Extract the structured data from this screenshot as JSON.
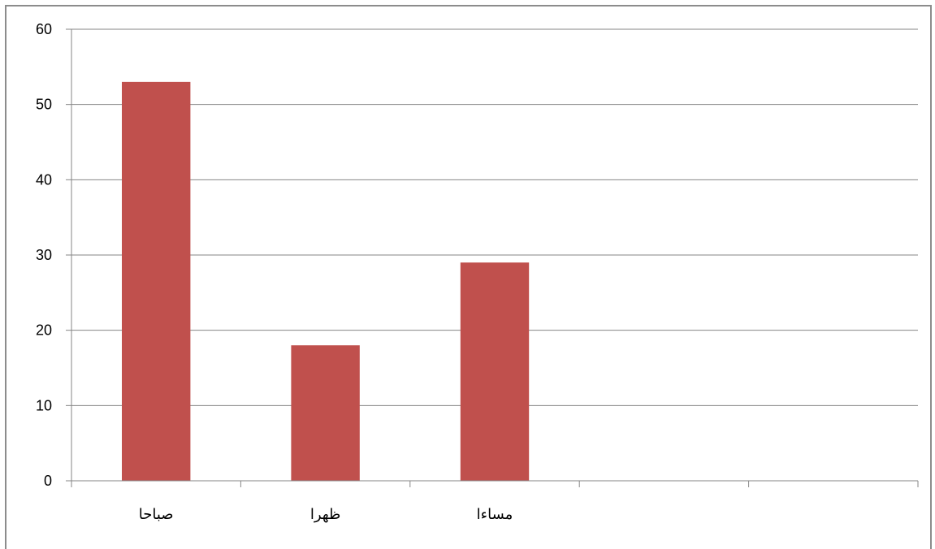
{
  "chart_data": {
    "type": "bar",
    "categories": [
      "صباحا",
      "ظهرا",
      "مساءا",
      "",
      ""
    ],
    "values": [
      53,
      18,
      29,
      null,
      null
    ],
    "ylim": [
      0,
      60
    ],
    "yticks": [
      0,
      10,
      20,
      30,
      40,
      50,
      60
    ],
    "grid": true,
    "legend": "none",
    "colors": {
      "bar": "#c0504d",
      "grid": "#868686",
      "axis": "#868686"
    }
  }
}
